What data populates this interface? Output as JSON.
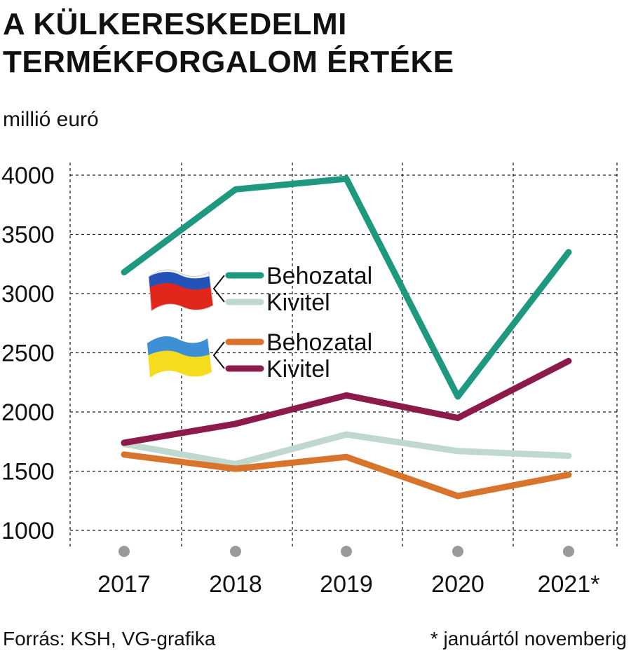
{
  "header": {
    "title_line1": "A KÜLKERESKEDELMI",
    "title_line2": "TERMÉKFORGALOM ÉRTÉKE",
    "unit": "millió euró"
  },
  "footer": {
    "source": "Forrás: KSH, VG-grafika",
    "note": "* januártól novemberig"
  },
  "legend": {
    "russia": {
      "flag": "russia-flag",
      "import_label": "Behozatal",
      "export_label": "Kivitel"
    },
    "ukraine": {
      "flag": "ukraine-flag",
      "import_label": "Behozatal",
      "export_label": "Kivitel"
    }
  },
  "chart_data": {
    "type": "line",
    "title": "A KÜLKERESKEDELMI TERMÉKFORGALOM ÉRTÉKE",
    "ylabel": "millió euró",
    "xlabel": "",
    "categories": [
      "2017",
      "2018",
      "2019",
      "2020",
      "2021*"
    ],
    "ylim": [
      1000,
      4000
    ],
    "yticks": [
      1000,
      1500,
      2000,
      2500,
      3000,
      3500,
      4000
    ],
    "grid": true,
    "series": [
      {
        "name": "Behozatal",
        "group": "russia",
        "color": "#1f9880",
        "values": [
          3180,
          3880,
          3970,
          2130,
          3350
        ]
      },
      {
        "name": "Kivitel",
        "group": "russia",
        "color": "#bfd9cf",
        "values": [
          1730,
          1560,
          1810,
          1670,
          1630
        ]
      },
      {
        "name": "Behozatal",
        "group": "ukraine",
        "color": "#d9742d",
        "values": [
          1640,
          1520,
          1620,
          1290,
          1470
        ]
      },
      {
        "name": "Kivitel",
        "group": "ukraine",
        "color": "#8c1b4b",
        "values": [
          1740,
          1900,
          2140,
          1950,
          2430
        ]
      }
    ]
  }
}
